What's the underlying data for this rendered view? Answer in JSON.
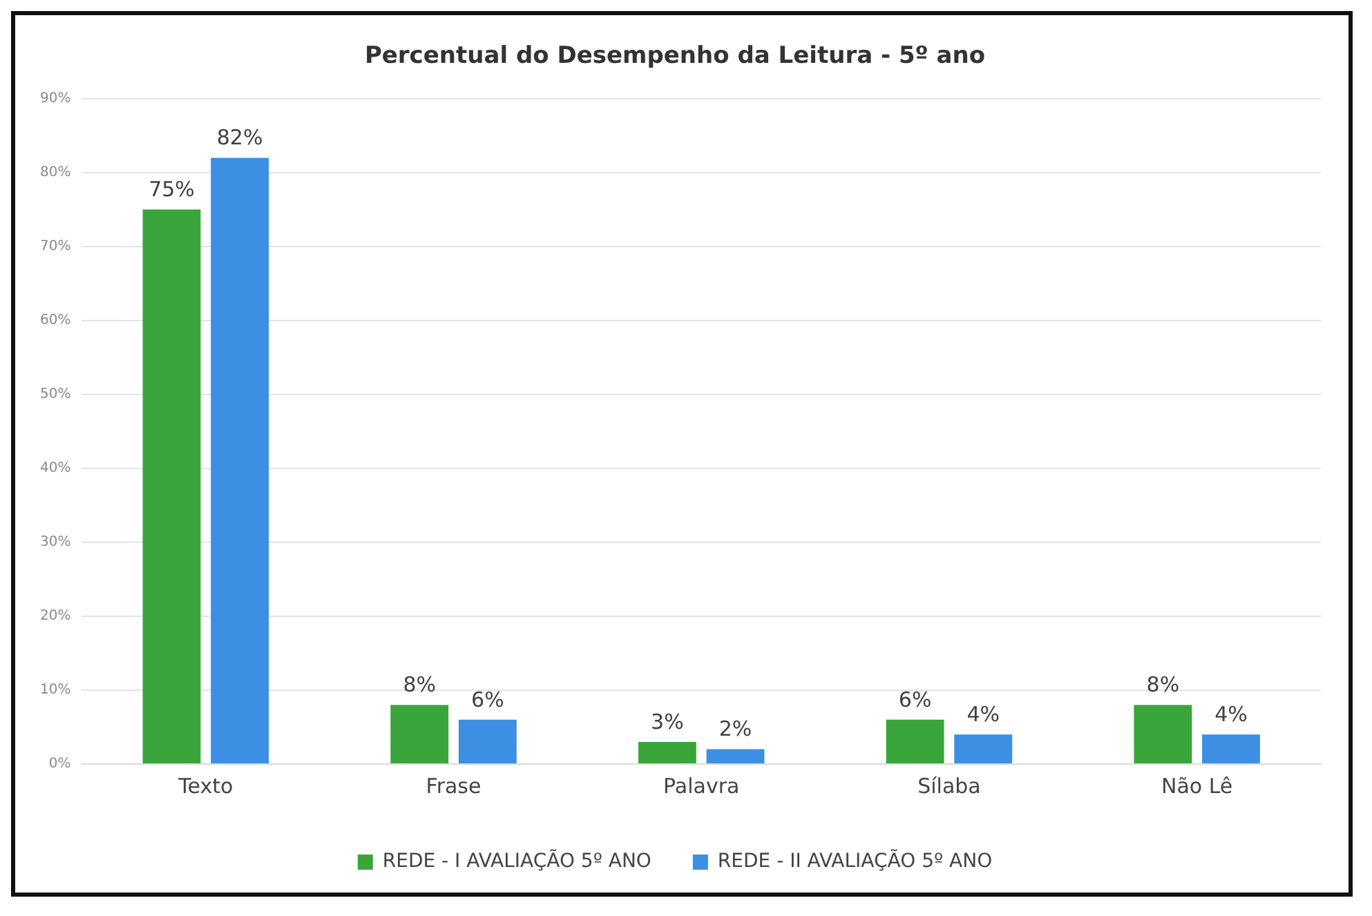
{
  "chart_data": {
    "type": "bar",
    "title": "Percentual do Desempenho da Leitura - 5º ano",
    "categories": [
      "Texto",
      "Frase",
      "Palavra",
      "Sílaba",
      "Não Lê"
    ],
    "series": [
      {
        "name": "REDE - I AVALIAÇÃO 5º ANO",
        "color": "#3aa53a",
        "values": [
          75,
          8,
          3,
          6,
          8
        ],
        "value_labels": [
          "75%",
          "8%",
          "3%",
          "6%",
          "8%"
        ]
      },
      {
        "name": "REDE - II AVALIAÇÃO 5º ANO",
        "color": "#3c8fe3",
        "values": [
          82,
          6,
          2,
          4,
          4
        ],
        "value_labels": [
          "82%",
          "6%",
          "2%",
          "4%",
          "4%"
        ]
      }
    ],
    "ylim": [
      0,
      90
    ],
    "yticks": [
      {
        "value": 0,
        "label": "0%"
      },
      {
        "value": 10,
        "label": "10%"
      },
      {
        "value": 20,
        "label": "20%"
      },
      {
        "value": 30,
        "label": "30%"
      },
      {
        "value": 40,
        "label": "40%"
      },
      {
        "value": 50,
        "label": "50%"
      },
      {
        "value": 60,
        "label": "60%"
      },
      {
        "value": 70,
        "label": "70%"
      },
      {
        "value": 80,
        "label": "80%"
      },
      {
        "value": 90,
        "label": "90%"
      }
    ],
    "grid": "y",
    "legend": "bottom"
  }
}
